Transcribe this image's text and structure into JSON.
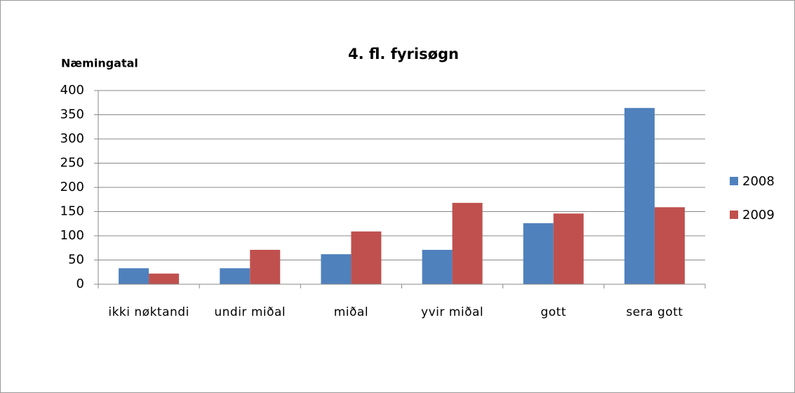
{
  "chart_data": {
    "type": "bar",
    "title": "4. fl. fyrisøgn",
    "y_label": "Næmingatal",
    "categories": [
      "ikki nøktandi",
      "undir miðal",
      "miðal",
      "yvir miðal",
      "gott",
      "sera gott"
    ],
    "series": [
      {
        "name": "2008",
        "color": "#4f81bd",
        "values": [
          33,
          33,
          62,
          71,
          126,
          364
        ]
      },
      {
        "name": "2009",
        "color": "#c0504d",
        "values": [
          22,
          71,
          109,
          168,
          146,
          159
        ]
      }
    ],
    "ylim": [
      0,
      400
    ],
    "yticks": [
      0,
      50,
      100,
      150,
      200,
      250,
      300,
      350,
      400
    ],
    "grid": true,
    "legend": "right"
  }
}
